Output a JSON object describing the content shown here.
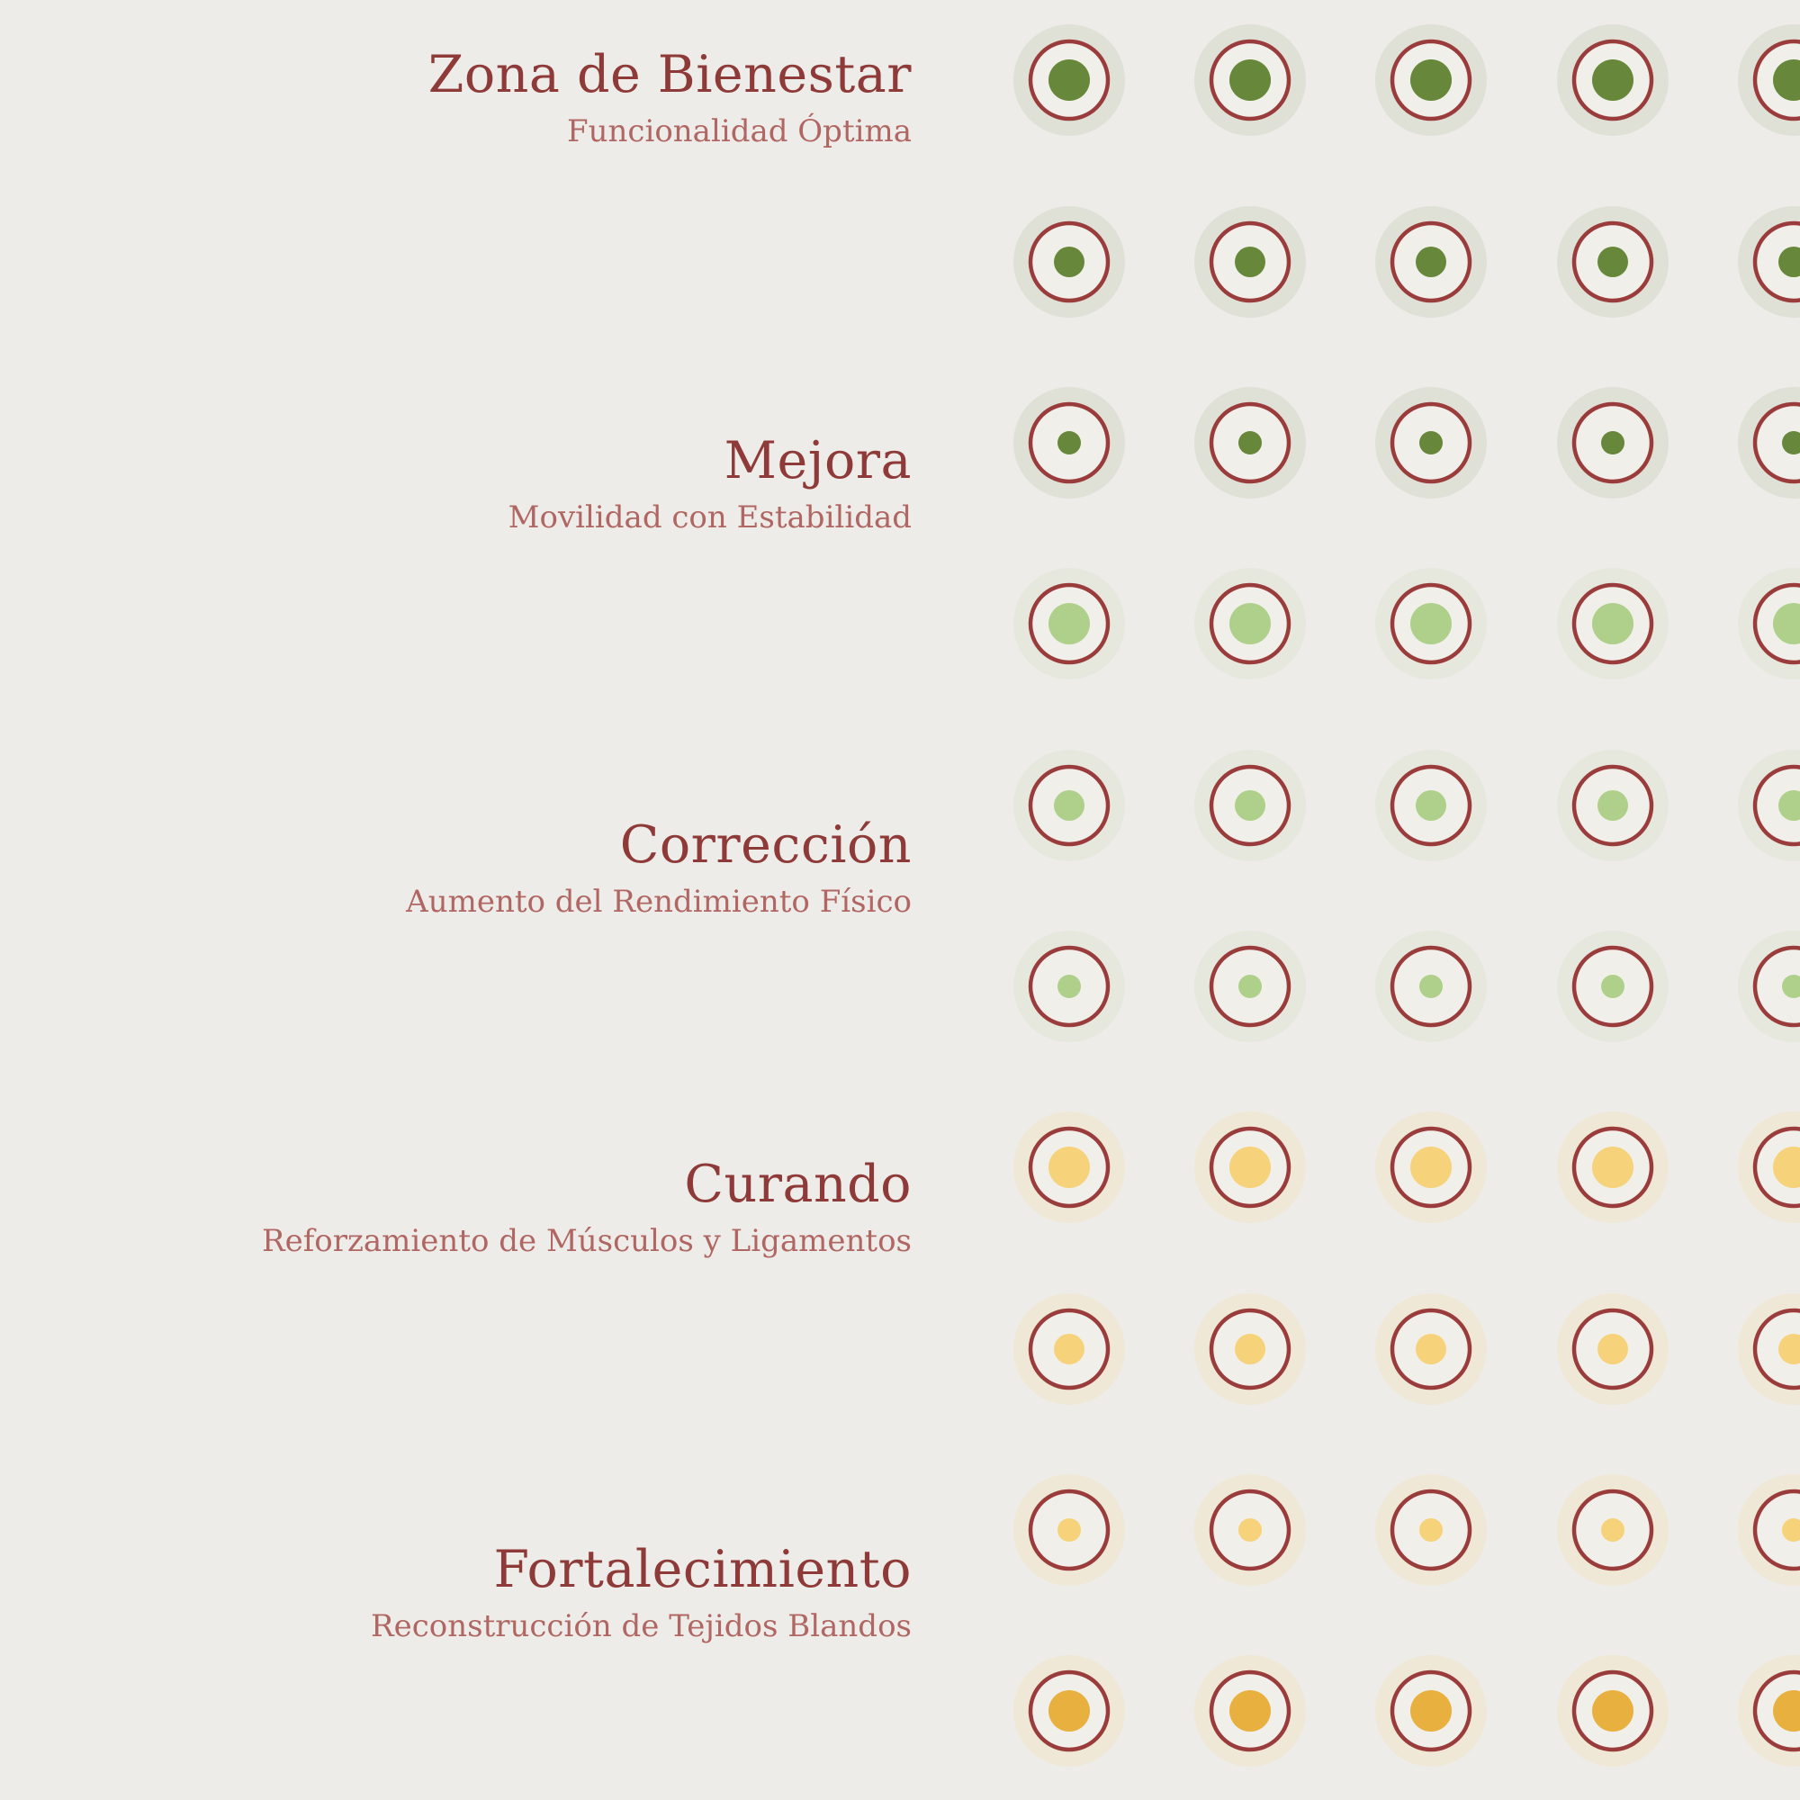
{
  "stages": [
    {
      "title": "Zona de Bienestar",
      "subtitle": "Funcionalidad Óptima"
    },
    {
      "title": "Mejora",
      "subtitle": "Movilidad con Estabilidad"
    },
    {
      "title": "Corrección",
      "subtitle": "Aumento del Rendimiento Físico"
    },
    {
      "title": "Curando",
      "subtitle": "Reforzamiento de Músculos y Ligamentos"
    },
    {
      "title": "Fortalecimiento",
      "subtitle": "Reconstrucción de Tejidos Blandos"
    }
  ],
  "colors": {
    "background": "#eeece8",
    "ring": "#9a3c3c",
    "disc_fill": "#f1efea",
    "dark_green": "#67883a",
    "light_green": "#afd08a",
    "light_yellow": "#f6d27a",
    "orange": "#e8b03f",
    "halo_green": "#dfe1d7",
    "halo_light": "#e6e8de",
    "halo_yellow": "#efe8d6"
  },
  "dot_rows": [
    {
      "dot_color": "dark_green",
      "halo": "halo_green",
      "dot_size": "large"
    },
    {
      "dot_color": "dark_green",
      "halo": "halo_green",
      "dot_size": "medium"
    },
    {
      "dot_color": "dark_green",
      "halo": "halo_green",
      "dot_size": "small"
    },
    {
      "dot_color": "light_green",
      "halo": "halo_light",
      "dot_size": "large"
    },
    {
      "dot_color": "light_green",
      "halo": "halo_light",
      "dot_size": "medium"
    },
    {
      "dot_color": "light_green",
      "halo": "halo_light",
      "dot_size": "small"
    },
    {
      "dot_color": "light_yellow",
      "halo": "halo_yellow",
      "dot_size": "large"
    },
    {
      "dot_color": "light_yellow",
      "halo": "halo_yellow",
      "dot_size": "medium"
    },
    {
      "dot_color": "light_yellow",
      "halo": "halo_yellow",
      "dot_size": "small"
    },
    {
      "dot_color": "orange",
      "halo": "halo_yellow",
      "dot_size": "large"
    }
  ]
}
